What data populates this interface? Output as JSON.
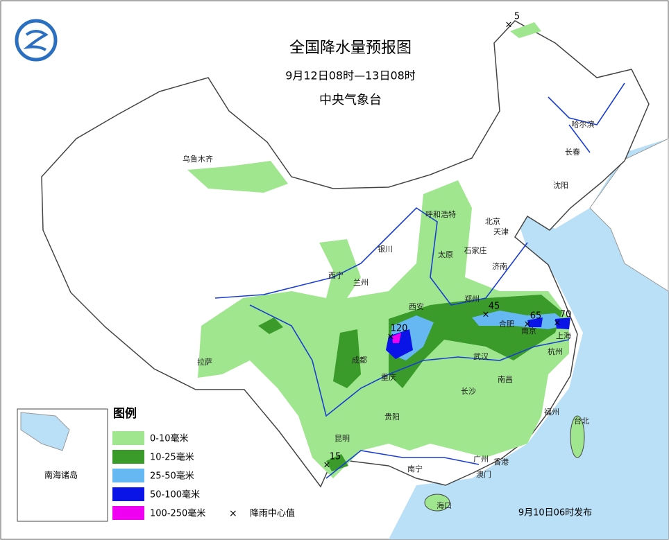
{
  "header": {
    "title": "全国降水量预报图",
    "period": "9月12日08时—13日08时",
    "agency": "中央气象台"
  },
  "cities": [
    "乌鲁木齐",
    "哈尔滨",
    "长春",
    "沈阳",
    "呼和浩特",
    "北京",
    "天津",
    "银川",
    "石家庄",
    "太原",
    "济南",
    "西宁",
    "兰州",
    "郑州",
    "西安",
    "合肥",
    "南京",
    "上海",
    "成都",
    "武汉",
    "杭州",
    "重庆",
    "长沙",
    "南昌",
    "拉萨",
    "贵阳",
    "福州",
    "台北",
    "昆明",
    "南宁",
    "广州",
    "香港",
    "澳门",
    "海口"
  ],
  "rain_centers": [
    5,
    45,
    65,
    70,
    120,
    15
  ],
  "legend": {
    "title": "图例",
    "items": [
      {
        "label": "0-10毫米",
        "color": "#9fe68f"
      },
      {
        "label": "10-25毫米",
        "color": "#3a9a2a"
      },
      {
        "label": "25-50毫米",
        "color": "#66b8f2"
      },
      {
        "label": "50-100毫米",
        "color": "#0a14e6"
      },
      {
        "label": "100-250毫米",
        "color": "#f000f0"
      }
    ],
    "center_symbol": "×",
    "center_label": "降雨中心值"
  },
  "inset_label": "南海诸岛",
  "issued": "9月10日06时发布"
}
